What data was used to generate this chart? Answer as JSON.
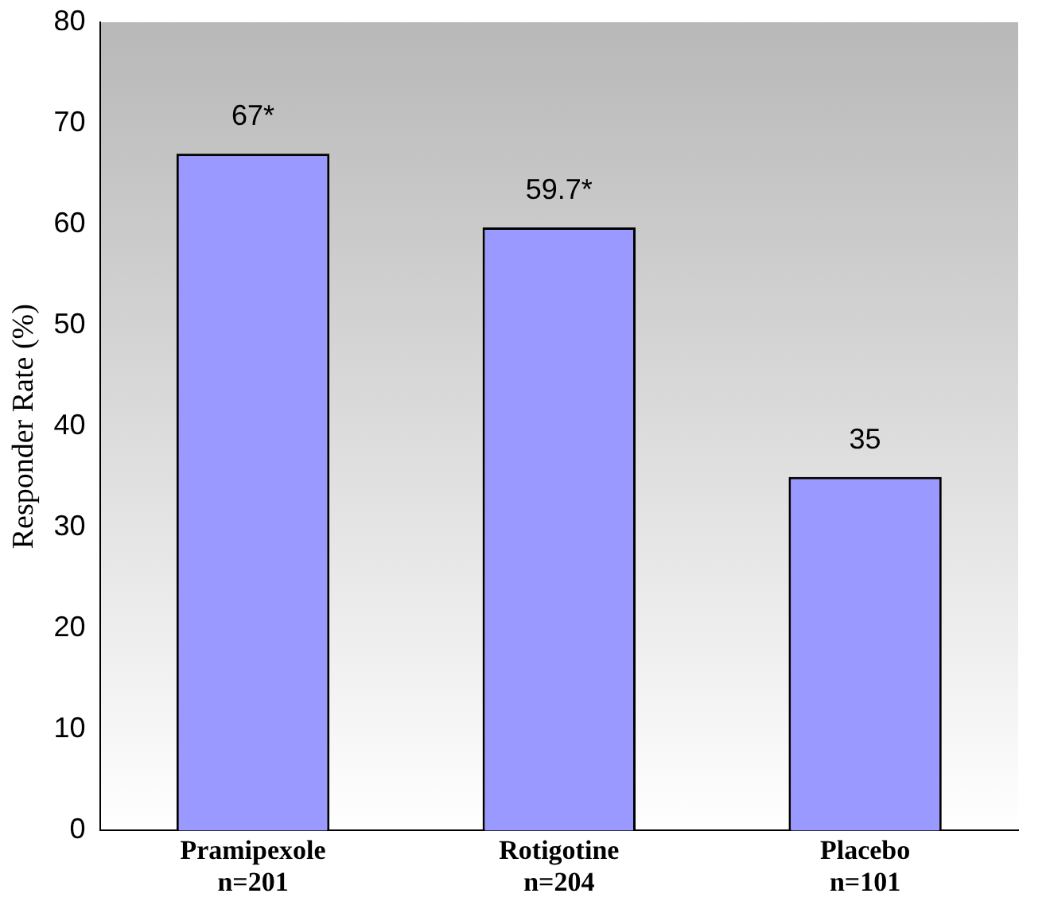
{
  "chart_data": {
    "type": "bar",
    "ylabel": "Responder Rate (%)",
    "categories": [
      "Pramipexole\nn=201",
      "Rotigotine\nn=204",
      "Placebo\nn=101"
    ],
    "values": [
      67,
      59.7,
      35
    ],
    "color": "#9999ff",
    "value_labels": [
      "67*",
      "59.7*",
      "35"
    ],
    "ylim": [
      0,
      80
    ],
    "yticks": [
      0,
      10,
      20,
      30,
      40,
      50,
      60,
      70,
      80
    ],
    "grid": false,
    "legend": false
  }
}
